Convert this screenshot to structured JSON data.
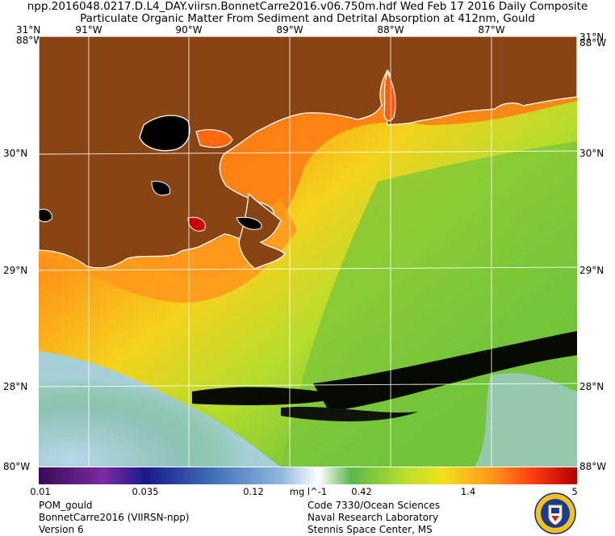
{
  "header": {
    "line1": "npp.2016048.0217.D.L4_DAY.viirsn.BonnetCarre2016.v06.750m.hdf   Wed Feb 17 2016 Daily Composite",
    "line2": "Particulate Organic Matter From Sediment and Detrital Absorption at 412nm, Gould"
  },
  "axes": {
    "top_lon": [
      "91°W",
      "90°W",
      "89°W",
      "88°W",
      "87°W"
    ],
    "lat_left": [
      "30°N",
      "29°N",
      "28°N"
    ],
    "lat_right": [
      "30°N",
      "29°N",
      "28°N"
    ],
    "corner_top_left": "31°N",
    "corner_top_left2": "88°W",
    "corner_bottom_left": "80°W",
    "corner_top_right": "31°N",
    "corner_top_right2": "88°W",
    "corner_bottom_right": "88°W"
  },
  "colorbar": {
    "unit": "mg l^-1",
    "ticks": [
      "0.01",
      "0.035",
      "0.12",
      "0.42",
      "1.4",
      "5"
    ],
    "colors": [
      "#3a0a5a",
      "#7a2ba0",
      "#1a1a8a",
      "#3f6db5",
      "#8fb8e0",
      "#ffffff",
      "#58b84a",
      "#b8e02a",
      "#f2e01a",
      "#ff9a1a",
      "#ff3a10",
      "#b00000"
    ]
  },
  "footer": {
    "left": [
      "POM_gould",
      "BonnetCarre2016 (VIIRSN-npp)",
      "Version 6"
    ],
    "right": [
      "Code 7330/Ocean Sciences",
      "Naval Research Laboratory",
      "Stennis Space Center, MS"
    ]
  },
  "colors": {
    "land": "#884513",
    "coastline": "#ffffff",
    "no_data": "#000000"
  }
}
